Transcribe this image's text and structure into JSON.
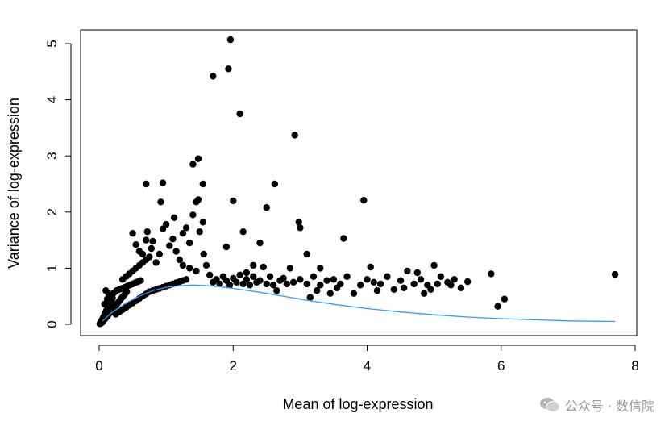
{
  "chart_data": {
    "type": "scatter",
    "xlabel": "Mean of log-expression",
    "ylabel": "Variance of log-expression",
    "xlim": [
      0,
      8
    ],
    "ylim": [
      0,
      5
    ],
    "x_ticks": [
      "0",
      "2",
      "4",
      "6",
      "8"
    ],
    "y_ticks": [
      "0",
      "1",
      "2",
      "3",
      "4",
      "5"
    ],
    "grid": false,
    "point_color": "#000000",
    "curve_color": "#3399ff",
    "series": [
      {
        "kind": "points",
        "points": [
          [
            0.01,
            0.01
          ],
          [
            0.02,
            0.03
          ],
          [
            0.03,
            0.05
          ],
          [
            0.04,
            0.07
          ],
          [
            0.05,
            0.09
          ],
          [
            0.06,
            0.12
          ],
          [
            0.07,
            0.14
          ],
          [
            0.08,
            0.17
          ],
          [
            0.09,
            0.2
          ],
          [
            0.1,
            0.22
          ],
          [
            0.11,
            0.25
          ],
          [
            0.12,
            0.27
          ],
          [
            0.13,
            0.3
          ],
          [
            0.14,
            0.32
          ],
          [
            0.15,
            0.35
          ],
          [
            0.16,
            0.37
          ],
          [
            0.17,
            0.4
          ],
          [
            0.18,
            0.42
          ],
          [
            0.19,
            0.45
          ],
          [
            0.2,
            0.47
          ],
          [
            0.03,
            0.02
          ],
          [
            0.05,
            0.04
          ],
          [
            0.07,
            0.08
          ],
          [
            0.09,
            0.1
          ],
          [
            0.11,
            0.13
          ],
          [
            0.13,
            0.16
          ],
          [
            0.15,
            0.19
          ],
          [
            0.17,
            0.22
          ],
          [
            0.19,
            0.25
          ],
          [
            0.21,
            0.28
          ],
          [
            0.23,
            0.31
          ],
          [
            0.25,
            0.34
          ],
          [
            0.27,
            0.37
          ],
          [
            0.29,
            0.4
          ],
          [
            0.31,
            0.43
          ],
          [
            0.33,
            0.46
          ],
          [
            0.35,
            0.49
          ],
          [
            0.37,
            0.52
          ],
          [
            0.39,
            0.55
          ],
          [
            0.41,
            0.58
          ],
          [
            0.08,
            0.36
          ],
          [
            0.12,
            0.45
          ],
          [
            0.1,
            0.6
          ],
          [
            0.14,
            0.55
          ],
          [
            0.18,
            0.52
          ],
          [
            0.22,
            0.56
          ],
          [
            0.26,
            0.6
          ],
          [
            0.3,
            0.62
          ],
          [
            0.34,
            0.64
          ],
          [
            0.38,
            0.66
          ],
          [
            0.42,
            0.68
          ],
          [
            0.46,
            0.7
          ],
          [
            0.5,
            0.72
          ],
          [
            0.54,
            0.74
          ],
          [
            0.58,
            0.76
          ],
          [
            0.62,
            0.78
          ],
          [
            0.25,
            0.18
          ],
          [
            0.3,
            0.22
          ],
          [
            0.35,
            0.26
          ],
          [
            0.4,
            0.3
          ],
          [
            0.45,
            0.34
          ],
          [
            0.5,
            0.38
          ],
          [
            0.55,
            0.42
          ],
          [
            0.6,
            0.46
          ],
          [
            0.65,
            0.5
          ],
          [
            0.7,
            0.54
          ],
          [
            0.75,
            0.58
          ],
          [
            0.8,
            0.6
          ],
          [
            0.85,
            0.62
          ],
          [
            0.9,
            0.64
          ],
          [
            0.95,
            0.66
          ],
          [
            1.0,
            0.68
          ],
          [
            1.05,
            0.7
          ],
          [
            1.1,
            0.72
          ],
          [
            1.15,
            0.74
          ],
          [
            1.2,
            0.76
          ],
          [
            1.25,
            0.78
          ],
          [
            1.3,
            0.8
          ],
          [
            0.35,
            0.8
          ],
          [
            0.4,
            0.85
          ],
          [
            0.45,
            0.9
          ],
          [
            0.5,
            0.95
          ],
          [
            0.55,
            1.0
          ],
          [
            0.6,
            1.05
          ],
          [
            0.65,
            1.1
          ],
          [
            0.7,
            1.15
          ],
          [
            0.75,
            1.2
          ],
          [
            0.5,
            1.62
          ],
          [
            0.55,
            1.42
          ],
          [
            0.6,
            1.3
          ],
          [
            0.65,
            1.25
          ],
          [
            0.7,
            1.5
          ],
          [
            0.72,
            1.65
          ],
          [
            0.78,
            1.35
          ],
          [
            0.8,
            1.48
          ],
          [
            0.85,
            1.1
          ],
          [
            0.9,
            1.25
          ],
          [
            0.95,
            1.7
          ],
          [
            1.0,
            1.78
          ],
          [
            1.05,
            1.4
          ],
          [
            1.1,
            1.52
          ],
          [
            1.12,
            1.9
          ],
          [
            1.15,
            1.3
          ],
          [
            1.2,
            1.15
          ],
          [
            1.25,
            1.62
          ],
          [
            1.3,
            1.72
          ],
          [
            1.35,
            1.45
          ],
          [
            1.4,
            1.95
          ],
          [
            1.45,
            2.18
          ],
          [
            1.48,
            2.22
          ],
          [
            1.5,
            1.65
          ],
          [
            1.55,
            1.82
          ],
          [
            1.56,
            1.25
          ],
          [
            1.6,
            1.05
          ],
          [
            0.7,
            2.5
          ],
          [
            0.95,
            2.52
          ],
          [
            0.92,
            2.18
          ],
          [
            1.4,
            2.85
          ],
          [
            1.48,
            2.95
          ],
          [
            1.55,
            2.5
          ],
          [
            1.7,
            4.42
          ],
          [
            1.93,
            4.55
          ],
          [
            1.96,
            5.07
          ],
          [
            2.1,
            3.75
          ],
          [
            2.0,
            2.2
          ],
          [
            1.9,
            1.38
          ],
          [
            2.15,
            1.65
          ],
          [
            2.4,
            1.45
          ],
          [
            2.5,
            2.08
          ],
          [
            2.62,
            2.5
          ],
          [
            2.92,
            3.37
          ],
          [
            2.98,
            1.82
          ],
          [
            3.0,
            1.72
          ],
          [
            3.65,
            1.53
          ],
          [
            3.95,
            2.21
          ],
          [
            3.1,
            1.25
          ],
          [
            2.85,
            1.0
          ],
          [
            3.3,
            1.0
          ],
          [
            2.3,
            1.05
          ],
          [
            2.45,
            1.02
          ],
          [
            1.7,
            0.75
          ],
          [
            1.75,
            0.8
          ],
          [
            1.8,
            0.72
          ],
          [
            1.85,
            0.85
          ],
          [
            1.9,
            0.78
          ],
          [
            1.95,
            0.7
          ],
          [
            2.0,
            0.82
          ],
          [
            2.05,
            0.75
          ],
          [
            2.1,
            0.88
          ],
          [
            2.15,
            0.72
          ],
          [
            2.2,
            0.8
          ],
          [
            2.25,
            0.7
          ],
          [
            2.3,
            0.85
          ],
          [
            2.35,
            0.75
          ],
          [
            2.4,
            0.78
          ],
          [
            2.5,
            0.72
          ],
          [
            2.55,
            0.85
          ],
          [
            2.6,
            0.7
          ],
          [
            2.7,
            0.78
          ],
          [
            2.75,
            0.82
          ],
          [
            2.8,
            0.72
          ],
          [
            2.9,
            0.75
          ],
          [
            3.0,
            0.8
          ],
          [
            3.1,
            0.72
          ],
          [
            3.2,
            0.85
          ],
          [
            3.3,
            0.7
          ],
          [
            3.4,
            0.78
          ],
          [
            3.5,
            0.8
          ],
          [
            3.6,
            0.72
          ],
          [
            3.7,
            0.85
          ],
          [
            3.8,
            0.55
          ],
          [
            3.9,
            0.7
          ],
          [
            4.0,
            0.8
          ],
          [
            4.05,
            1.02
          ],
          [
            4.1,
            0.75
          ],
          [
            4.2,
            0.72
          ],
          [
            4.3,
            0.85
          ],
          [
            4.4,
            0.62
          ],
          [
            4.5,
            0.78
          ],
          [
            4.6,
            0.95
          ],
          [
            4.7,
            0.72
          ],
          [
            4.8,
            0.8
          ],
          [
            4.85,
            0.55
          ],
          [
            4.9,
            0.7
          ],
          [
            5.0,
            1.05
          ],
          [
            5.05,
            0.72
          ],
          [
            5.1,
            0.85
          ],
          [
            5.2,
            0.75
          ],
          [
            5.3,
            0.8
          ],
          [
            5.4,
            0.65
          ],
          [
            5.5,
            0.76
          ],
          [
            5.85,
            0.9
          ],
          [
            5.95,
            0.32
          ],
          [
            6.05,
            0.45
          ],
          [
            7.7,
            0.89
          ],
          [
            3.15,
            0.48
          ],
          [
            3.45,
            0.55
          ],
          [
            3.25,
            0.6
          ],
          [
            2.65,
            0.6
          ],
          [
            3.55,
            0.65
          ],
          [
            4.15,
            0.6
          ],
          [
            4.55,
            0.65
          ],
          [
            4.75,
            0.92
          ],
          [
            4.95,
            0.62
          ],
          [
            5.25,
            0.7
          ],
          [
            2.2,
            0.92
          ],
          [
            1.65,
            0.88
          ],
          [
            1.45,
            0.95
          ],
          [
            1.35,
            1.0
          ],
          [
            1.25,
            1.05
          ]
        ]
      },
      {
        "kind": "trend",
        "points": [
          [
            0.05,
            0.06
          ],
          [
            0.2,
            0.22
          ],
          [
            0.4,
            0.38
          ],
          [
            0.6,
            0.5
          ],
          [
            0.8,
            0.6
          ],
          [
            1.0,
            0.66
          ],
          [
            1.2,
            0.69
          ],
          [
            1.4,
            0.7
          ],
          [
            1.6,
            0.69
          ],
          [
            1.8,
            0.67
          ],
          [
            2.0,
            0.64
          ],
          [
            2.4,
            0.57
          ],
          [
            2.8,
            0.49
          ],
          [
            3.2,
            0.41
          ],
          [
            3.6,
            0.34
          ],
          [
            4.0,
            0.28
          ],
          [
            4.5,
            0.22
          ],
          [
            5.0,
            0.17
          ],
          [
            5.5,
            0.13
          ],
          [
            6.0,
            0.1
          ],
          [
            6.5,
            0.08
          ],
          [
            7.0,
            0.06
          ],
          [
            7.7,
            0.05
          ]
        ]
      }
    ]
  },
  "watermark": {
    "icon": "wechat-icon",
    "text": "公众号 · 数信院"
  }
}
